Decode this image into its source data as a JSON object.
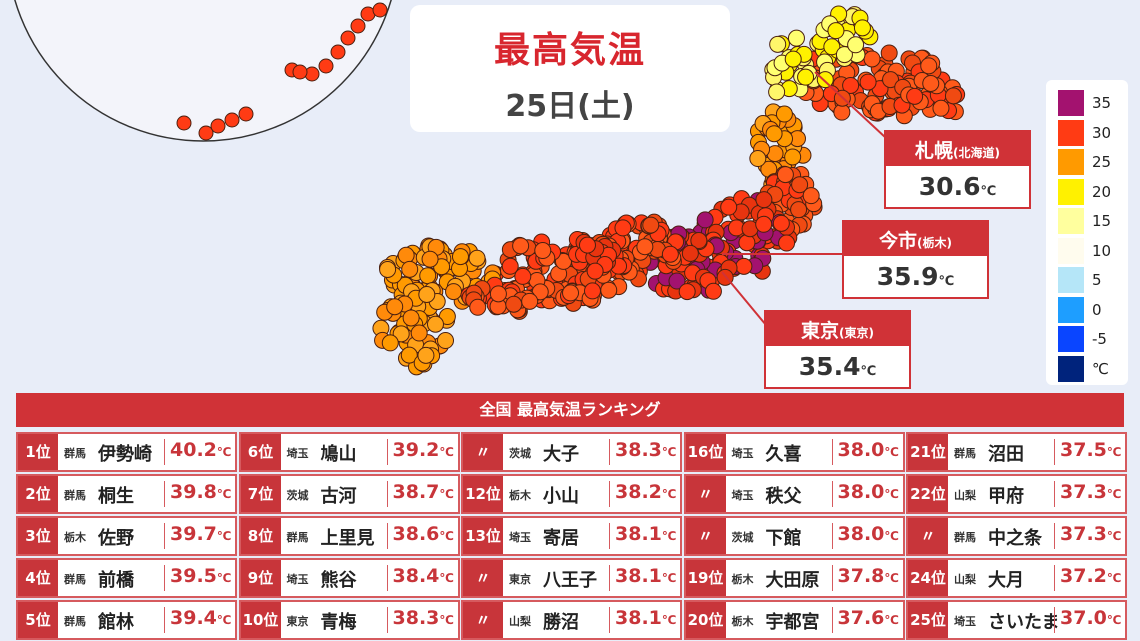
{
  "header": {
    "title": "最高気温",
    "date": "25日(土)"
  },
  "legend": {
    "items": [
      {
        "label": "35",
        "color": "#a3126f"
      },
      {
        "label": "30",
        "color": "#ff3b14"
      },
      {
        "label": "25",
        "color": "#ff9a00"
      },
      {
        "label": "20",
        "color": "#fff100"
      },
      {
        "label": "15",
        "color": "#ffff9e"
      },
      {
        "label": "10",
        "color": "#fffcee"
      },
      {
        "label": "5",
        "color": "#b5e6f8"
      },
      {
        "label": "0",
        "color": "#1e9eff"
      },
      {
        "label": "-5",
        "color": "#0a45ff"
      },
      {
        "label": "℃",
        "color": "#00237c"
      }
    ]
  },
  "callouts": [
    {
      "name": "札幌",
      "region": "(北海道)",
      "value": "30.6",
      "unit": "℃"
    },
    {
      "name": "今市",
      "region": "(栃木)",
      "value": "35.9",
      "unit": "℃"
    },
    {
      "name": "東京",
      "region": "(東京)",
      "value": "35.4",
      "unit": "℃"
    }
  ],
  "ranking": {
    "title": "全国 最高気温ランキング",
    "unit": "℃",
    "rows": [
      {
        "rank": "1位",
        "pref": "群馬",
        "city": "伊勢崎",
        "temp": "40.2"
      },
      {
        "rank": "2位",
        "pref": "群馬",
        "city": "桐生",
        "temp": "39.8"
      },
      {
        "rank": "3位",
        "pref": "栃木",
        "city": "佐野",
        "temp": "39.7"
      },
      {
        "rank": "4位",
        "pref": "群馬",
        "city": "前橋",
        "temp": "39.5"
      },
      {
        "rank": "5位",
        "pref": "群馬",
        "city": "館林",
        "temp": "39.4"
      },
      {
        "rank": "6位",
        "pref": "埼玉",
        "city": "鳩山",
        "temp": "39.2"
      },
      {
        "rank": "7位",
        "pref": "茨城",
        "city": "古河",
        "temp": "38.7"
      },
      {
        "rank": "8位",
        "pref": "群馬",
        "city": "上里見",
        "temp": "38.6"
      },
      {
        "rank": "9位",
        "pref": "埼玉",
        "city": "熊谷",
        "temp": "38.4"
      },
      {
        "rank": "10位",
        "pref": "東京",
        "city": "青梅",
        "temp": "38.3"
      },
      {
        "rank": "〃",
        "pref": "茨城",
        "city": "大子",
        "temp": "38.3"
      },
      {
        "rank": "12位",
        "pref": "栃木",
        "city": "小山",
        "temp": "38.2"
      },
      {
        "rank": "13位",
        "pref": "埼玉",
        "city": "寄居",
        "temp": "38.1"
      },
      {
        "rank": "〃",
        "pref": "東京",
        "city": "八王子",
        "temp": "38.1"
      },
      {
        "rank": "〃",
        "pref": "山梨",
        "city": "勝沼",
        "temp": "38.1"
      },
      {
        "rank": "16位",
        "pref": "埼玉",
        "city": "久喜",
        "temp": "38.0"
      },
      {
        "rank": "〃",
        "pref": "埼玉",
        "city": "秩父",
        "temp": "38.0"
      },
      {
        "rank": "〃",
        "pref": "茨城",
        "city": "下館",
        "temp": "38.0"
      },
      {
        "rank": "19位",
        "pref": "栃木",
        "city": "大田原",
        "temp": "37.8"
      },
      {
        "rank": "20位",
        "pref": "栃木",
        "city": "宇都宮",
        "temp": "37.6"
      },
      {
        "rank": "21位",
        "pref": "群馬",
        "city": "沼田",
        "temp": "37.5"
      },
      {
        "rank": "22位",
        "pref": "山梨",
        "city": "甲府",
        "temp": "37.3"
      },
      {
        "rank": "〃",
        "pref": "群馬",
        "city": "中之条",
        "temp": "37.3"
      },
      {
        "rank": "24位",
        "pref": "山梨",
        "city": "大月",
        "temp": "37.2"
      },
      {
        "rank": "25位",
        "pref": "埼玉",
        "city": "さいたま",
        "temp": "37.0"
      }
    ]
  }
}
